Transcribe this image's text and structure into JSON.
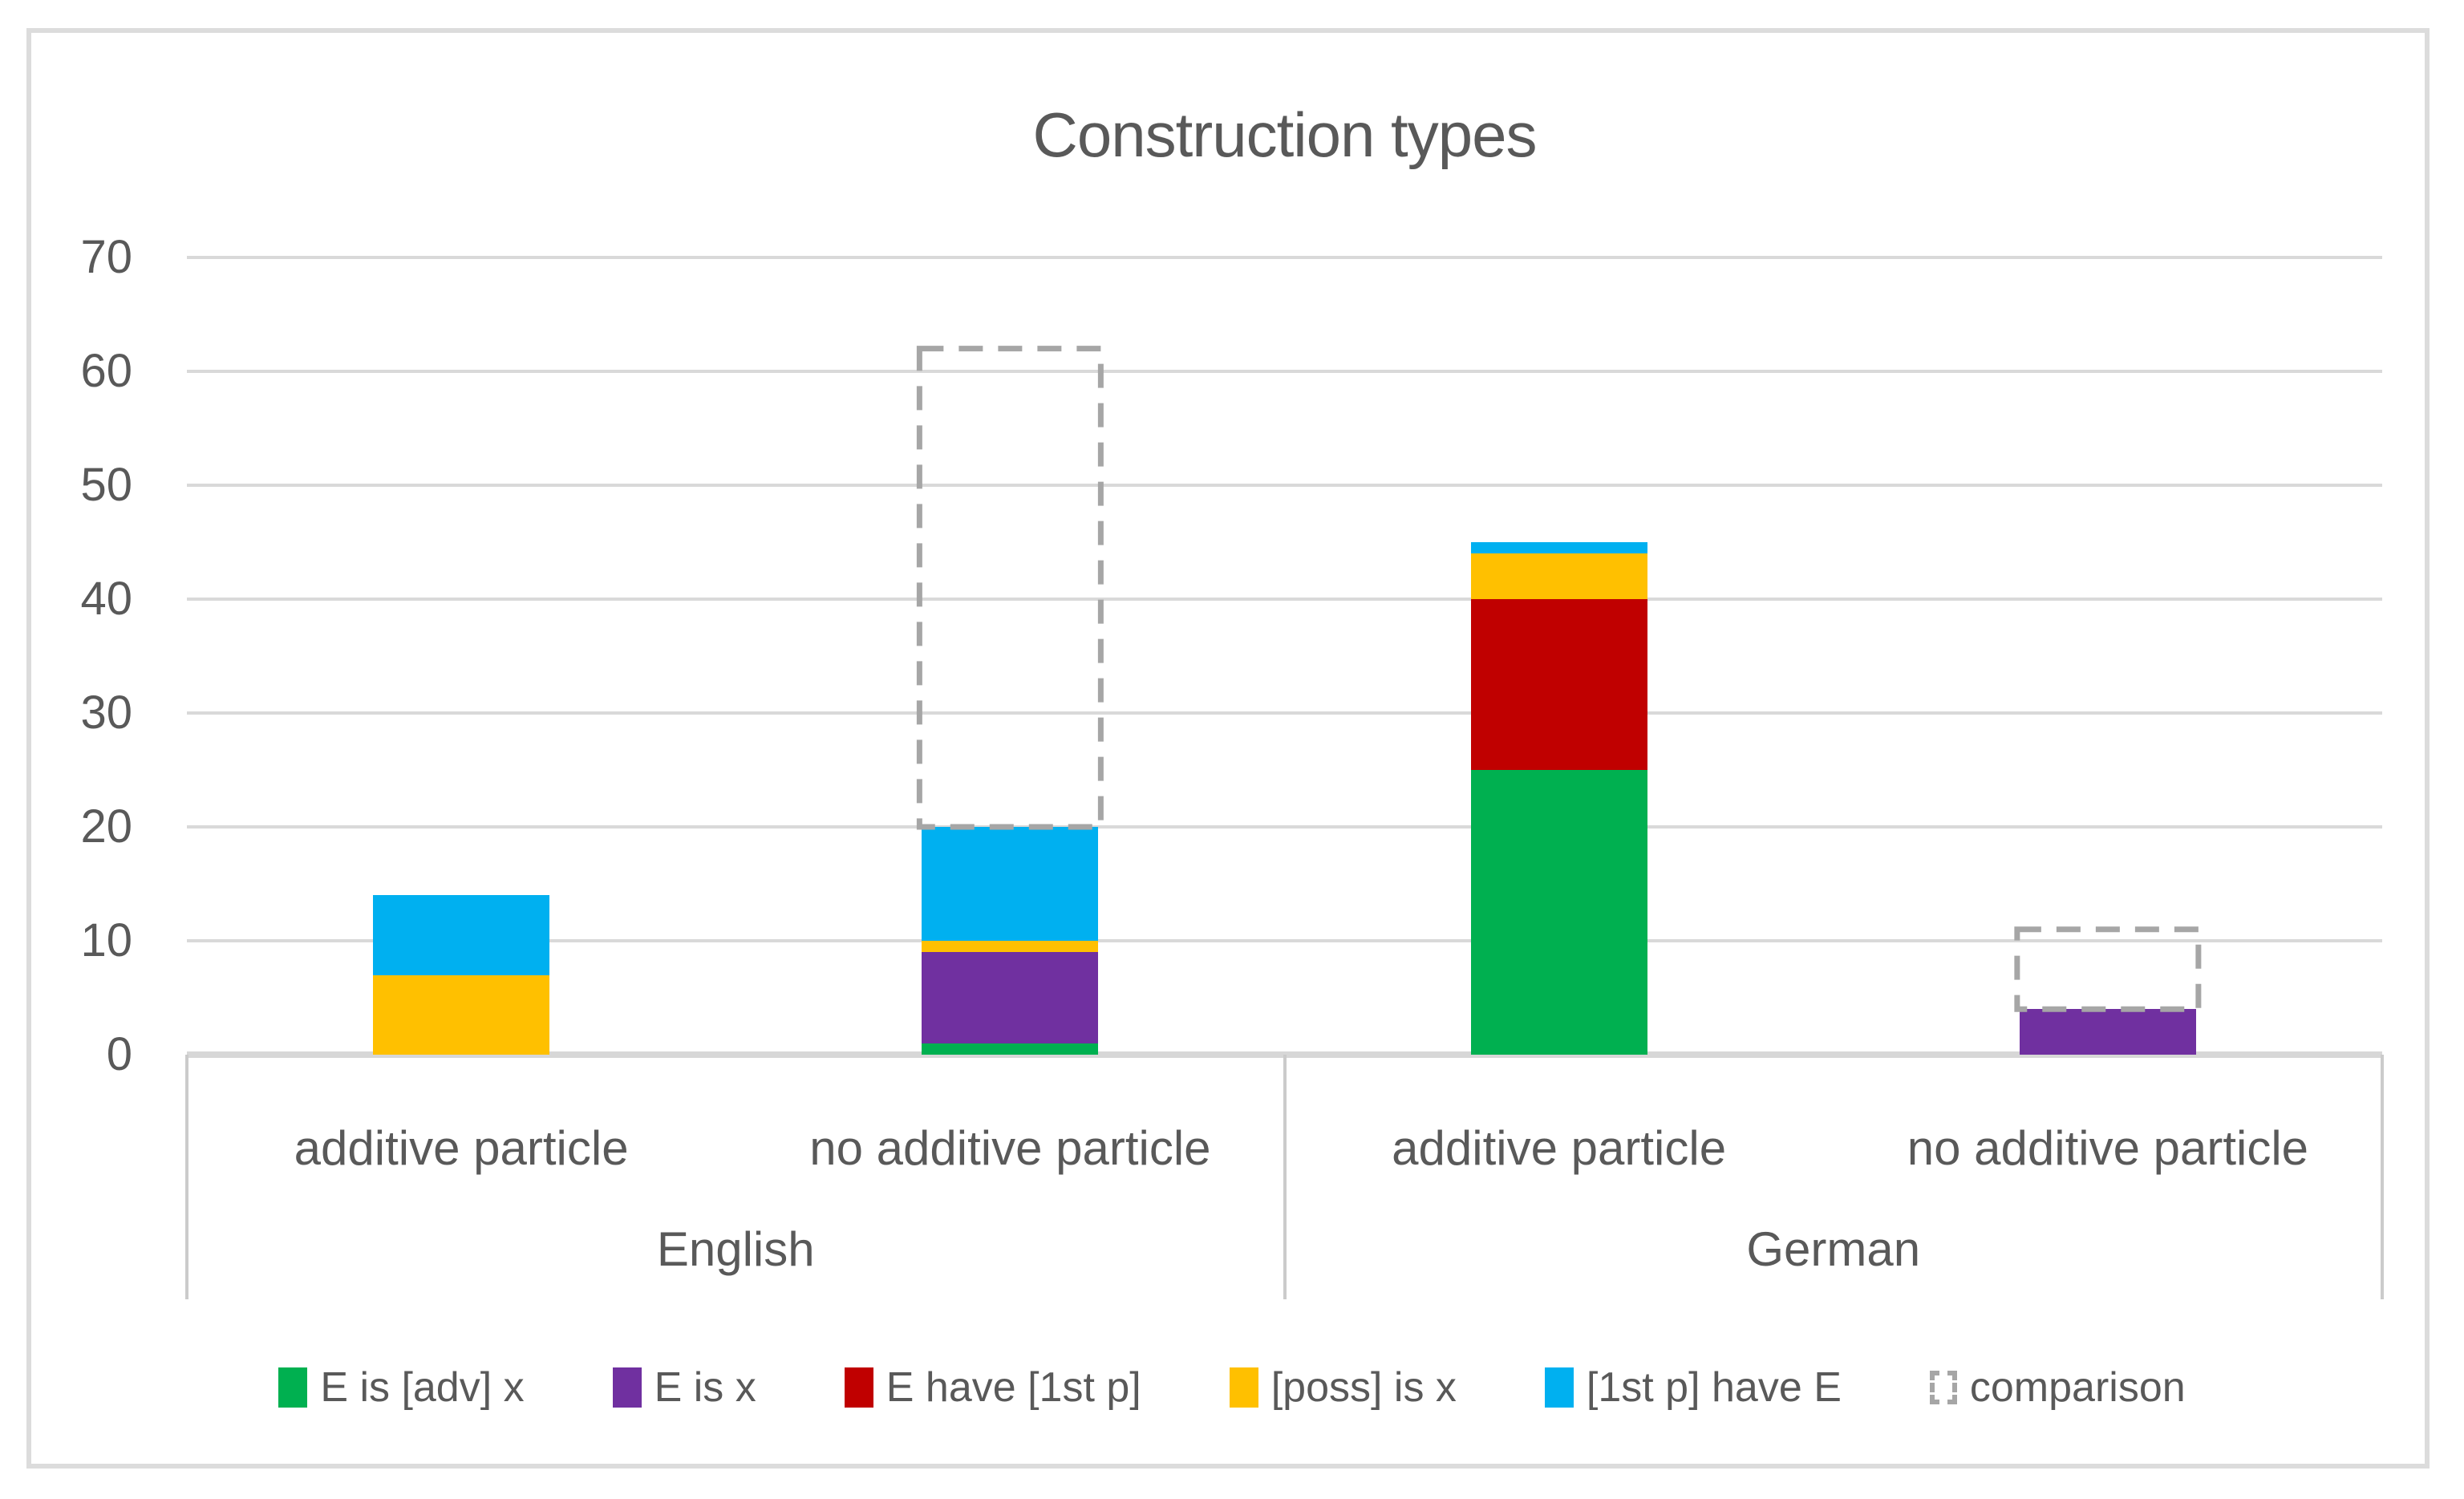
{
  "chart_data": {
    "type": "bar",
    "stacked": true,
    "title": "Construction types",
    "ylim": [
      0,
      70
    ],
    "yticks": [
      0,
      10,
      20,
      30,
      40,
      50,
      60,
      70
    ],
    "grid": true,
    "legend_position": "bottom",
    "categories": [
      "additive particle",
      "no additive particle",
      "additive particle",
      "no additive particle"
    ],
    "groups": [
      {
        "label": "English",
        "span": [
          0,
          1
        ]
      },
      {
        "label": "German",
        "span": [
          2,
          3
        ]
      }
    ],
    "series": [
      {
        "name": "E is [adv] x",
        "color": "#00B050",
        "values": [
          0,
          1,
          25,
          0
        ]
      },
      {
        "name": "E is x",
        "color": "#7030A0",
        "values": [
          0,
          8,
          0,
          4
        ]
      },
      {
        "name": "E have [1st p]",
        "color": "#C00000",
        "values": [
          0,
          0,
          15,
          0
        ]
      },
      {
        "name": "[poss] is x",
        "color": "#FFC000",
        "values": [
          7,
          1,
          4,
          0
        ]
      },
      {
        "name": "[1st p] have E",
        "color": "#00B0F0",
        "values": [
          7,
          10,
          1,
          0
        ]
      }
    ],
    "comparison": {
      "name": "comparison",
      "color": "#A6A6A6",
      "totals": [
        null,
        62,
        null,
        11
      ]
    },
    "stack_totals": [
      14,
      20,
      45,
      4
    ],
    "theme": {
      "text_color": "#595959",
      "gridline_color": "#D9D9D9",
      "axis_line_color": "#D7D7D7",
      "divider_color": "#CBCBCB",
      "frame_border_color": "#DCDCDC",
      "background": "#FFFFFF"
    }
  }
}
